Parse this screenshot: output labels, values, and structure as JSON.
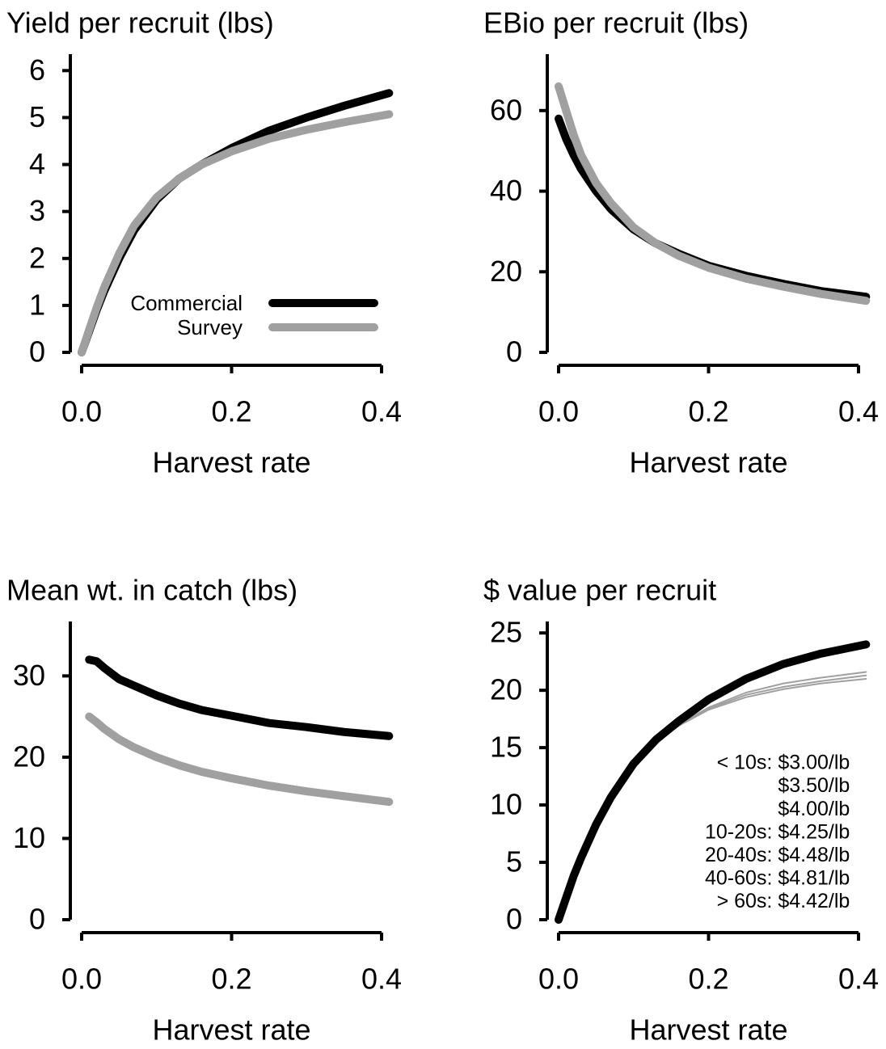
{
  "chart_data": [
    {
      "type": "line",
      "title": "Yield per recruit (lbs)",
      "xlabel": "Harvest rate",
      "x": [
        0,
        0.01,
        0.02,
        0.03,
        0.05,
        0.07,
        0.1,
        0.13,
        0.16,
        0.2,
        0.25,
        0.3,
        0.35,
        0.41
      ],
      "series": [
        {
          "name": "Commercial",
          "color": "#000000",
          "linewidth": 10,
          "values": [
            0,
            0.45,
            0.9,
            1.3,
            2.0,
            2.6,
            3.25,
            3.7,
            4.0,
            4.35,
            4.72,
            5.0,
            5.25,
            5.52
          ]
        },
        {
          "name": "Survey",
          "color": "#a0a0a0",
          "linewidth": 10,
          "values": [
            0,
            0.48,
            0.95,
            1.38,
            2.1,
            2.7,
            3.3,
            3.7,
            4.0,
            4.28,
            4.55,
            4.74,
            4.9,
            5.07
          ]
        }
      ],
      "legend": "bottom right",
      "xlim": [
        0,
        0.41
      ],
      "xticks": [
        {
          "value": 0,
          "label": "0.0"
        },
        0.2,
        0.4
      ],
      "ylim": [
        0,
        6.35
      ],
      "yticks": [
        0,
        1,
        2,
        3,
        4,
        5,
        6
      ]
    },
    {
      "type": "line",
      "title": "EBio per recruit (lbs)",
      "xlabel": "Harvest rate",
      "x": [
        0,
        0.01,
        0.02,
        0.03,
        0.05,
        0.07,
        0.1,
        0.13,
        0.16,
        0.2,
        0.25,
        0.3,
        0.35,
        0.41
      ],
      "series": [
        {
          "color": "#000000",
          "linewidth": 10,
          "values": [
            58,
            53,
            49,
            45.5,
            40,
            35.5,
            30.5,
            27,
            24.5,
            21.5,
            19,
            17,
            15.2,
            13.8
          ]
        },
        {
          "color": "#a0a0a0",
          "linewidth": 10,
          "values": [
            66,
            60,
            54,
            49,
            42,
            37,
            31,
            27,
            24,
            21,
            18.3,
            16.3,
            14.5,
            12.8
          ]
        }
      ],
      "xlim": [
        0,
        0.41
      ],
      "xticks": [
        {
          "value": 0,
          "label": "0.0"
        },
        0.2,
        0.4
      ],
      "ylim": [
        0,
        74
      ],
      "yticks": [
        0,
        20,
        40,
        60
      ]
    },
    {
      "type": "line",
      "title": "Mean wt. in catch (lbs)",
      "xlabel": "Harvest rate",
      "x": [
        0.01,
        0.02,
        0.03,
        0.05,
        0.07,
        0.1,
        0.13,
        0.16,
        0.2,
        0.25,
        0.3,
        0.35,
        0.41
      ],
      "series": [
        {
          "color": "#000000",
          "linewidth": 10,
          "values": [
            32,
            31.8,
            31,
            29.6,
            28.8,
            27.6,
            26.6,
            25.8,
            25.1,
            24.2,
            23.7,
            23.1,
            22.6
          ]
        },
        {
          "color": "#a0a0a0",
          "linewidth": 10,
          "values": [
            25,
            24.3,
            23.5,
            22.2,
            21.2,
            20.0,
            19.0,
            18.2,
            17.4,
            16.5,
            15.8,
            15.2,
            14.5
          ]
        }
      ],
      "xlim": [
        0,
        0.41
      ],
      "xticks": [
        {
          "value": 0,
          "label": "0.0"
        },
        0.2,
        0.4
      ],
      "ylim": [
        0,
        36.7
      ],
      "yticks": [
        0,
        10,
        20,
        30
      ]
    },
    {
      "type": "line",
      "title": "$ value per recruit",
      "xlabel": "Harvest rate",
      "x": [
        0,
        0.01,
        0.02,
        0.03,
        0.05,
        0.07,
        0.1,
        0.13,
        0.16,
        0.2,
        0.25,
        0.3,
        0.35,
        0.41
      ],
      "series": [
        {
          "color": "#a0a0a0",
          "linewidth": 2,
          "values": [
            0,
            1.9,
            3.8,
            5.4,
            8.3,
            10.7,
            13.5,
            15.5,
            16.9,
            18.3,
            19.4,
            20.1,
            20.6,
            21.0
          ]
        },
        {
          "color": "#a0a0a0",
          "linewidth": 2,
          "values": [
            0,
            1.9,
            3.8,
            5.4,
            8.3,
            10.7,
            13.5,
            15.5,
            16.9,
            18.4,
            19.6,
            20.3,
            20.8,
            21.3
          ]
        },
        {
          "color": "#a0a0a0",
          "linewidth": 2,
          "values": [
            0,
            1.9,
            3.8,
            5.4,
            8.3,
            10.7,
            13.5,
            15.6,
            17.0,
            18.5,
            19.8,
            20.6,
            21.1,
            21.6
          ]
        },
        {
          "color": "#000000",
          "linewidth": 10,
          "values": [
            0,
            1.9,
            3.8,
            5.4,
            8.3,
            10.7,
            13.6,
            15.7,
            17.3,
            19.2,
            21.0,
            22.3,
            23.2,
            24.0
          ]
        }
      ],
      "annotations": [
        "< 10s: $3.00/lb",
        "$3.50/lb",
        "$4.00/lb",
        "10-20s: $4.25/lb",
        "20-40s: $4.48/lb",
        "40-60s: $4.81/lb",
        "> 60s: $4.42/lb"
      ],
      "xlim": [
        0,
        0.41
      ],
      "xticks": [
        {
          "value": 0,
          "label": "0.0"
        },
        0.2,
        0.4
      ],
      "ylim": [
        0,
        26
      ],
      "yticks": [
        0,
        5,
        10,
        15,
        20,
        25
      ]
    }
  ]
}
